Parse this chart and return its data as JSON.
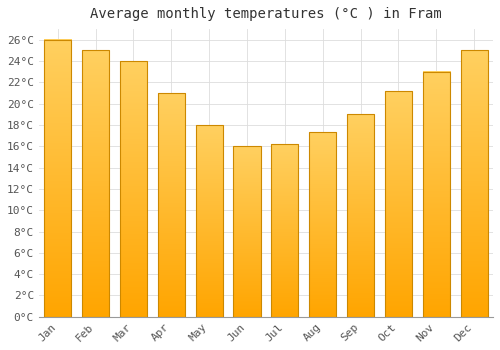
{
  "title": "Average monthly temperatures (°C ) in Fram",
  "months": [
    "Jan",
    "Feb",
    "Mar",
    "Apr",
    "May",
    "Jun",
    "Jul",
    "Aug",
    "Sep",
    "Oct",
    "Nov",
    "Dec"
  ],
  "values": [
    26,
    25,
    24,
    21,
    18,
    16,
    16.2,
    17.3,
    19,
    21.2,
    23,
    25
  ],
  "bar_color_top": "#FFD060",
  "bar_color_bottom": "#FFA500",
  "bar_edge_color": "#CC8800",
  "background_color": "#FFFFFF",
  "grid_color": "#DDDDDD",
  "ylim": [
    0,
    27
  ],
  "ytick_step": 2,
  "title_fontsize": 10,
  "tick_fontsize": 8,
  "font_family": "monospace"
}
